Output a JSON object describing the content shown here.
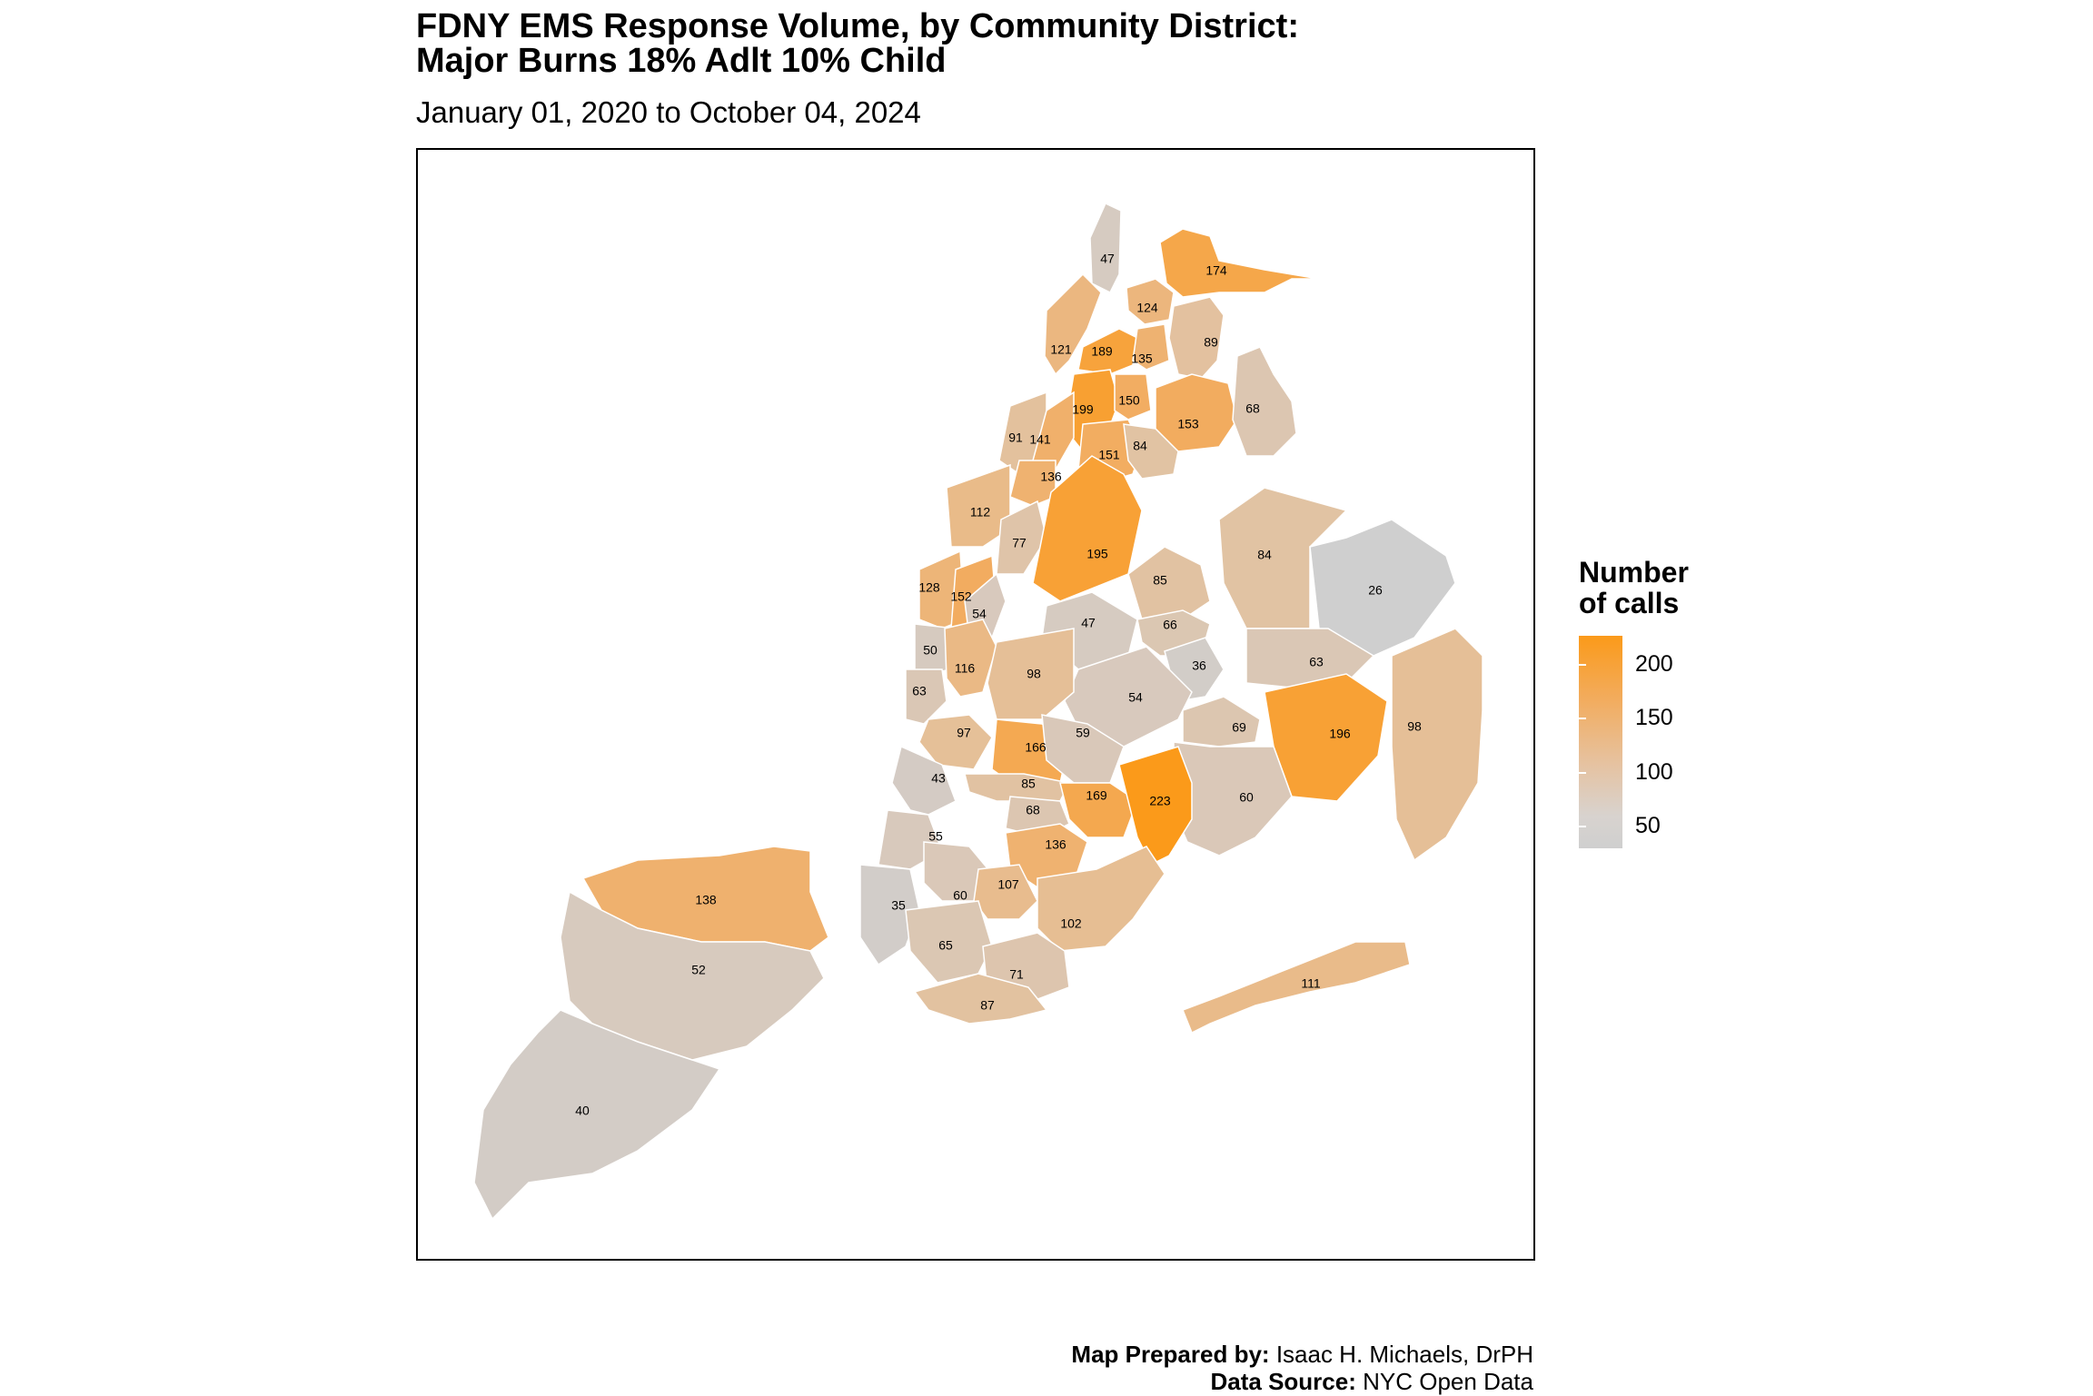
{
  "title_line1": "FDNY EMS Response Volume, by Community District:",
  "title_line2": "Major Burns 18% Adlt 10% Child",
  "subtitle": "January 01, 2020 to October 04, 2024",
  "legend": {
    "title_line1": "Number",
    "title_line2": "of calls",
    "ticks": [
      "200",
      "150",
      "100",
      "50"
    ],
    "color_low": "#cfcfcf",
    "color_high": "#fb9a1a"
  },
  "caption": {
    "prepared_label": "Map Prepared by:",
    "prepared_value": "Isaac H. Michaels, DrPH",
    "source_label": "Data Source:",
    "source_value": "NYC Open Data"
  },
  "districts": [
    {
      "borough": "Bronx",
      "value": 47
    },
    {
      "borough": "Bronx",
      "value": 174
    },
    {
      "borough": "Bronx",
      "value": 124
    },
    {
      "borough": "Bronx",
      "value": 121
    },
    {
      "borough": "Bronx",
      "value": 189
    },
    {
      "borough": "Bronx",
      "value": 135
    },
    {
      "borough": "Bronx",
      "value": 89
    },
    {
      "borough": "Bronx",
      "value": 199
    },
    {
      "borough": "Bronx",
      "value": 150
    },
    {
      "borough": "Bronx",
      "value": 153
    },
    {
      "borough": "Bronx",
      "value": 68
    },
    {
      "borough": "Bronx",
      "value": 151
    },
    {
      "borough": "Bronx",
      "value": 84
    },
    {
      "borough": "Manhattan",
      "value": 91
    },
    {
      "borough": "Manhattan",
      "value": 141
    },
    {
      "borough": "Manhattan",
      "value": 136
    },
    {
      "borough": "Manhattan",
      "value": 112
    },
    {
      "borough": "Manhattan",
      "value": 77
    },
    {
      "borough": "Manhattan",
      "value": 128
    },
    {
      "borough": "Manhattan",
      "value": 152
    },
    {
      "borough": "Manhattan",
      "value": 54
    },
    {
      "borough": "Manhattan",
      "value": 50
    },
    {
      "borough": "Manhattan",
      "value": 63
    },
    {
      "borough": "Queens",
      "value": 195
    },
    {
      "borough": "Queens",
      "value": 85
    },
    {
      "borough": "Queens",
      "value": 84
    },
    {
      "borough": "Queens",
      "value": 26
    },
    {
      "borough": "Queens",
      "value": 47
    },
    {
      "borough": "Queens",
      "value": 66
    },
    {
      "borough": "Queens",
      "value": 36
    },
    {
      "borough": "Queens",
      "value": 63
    },
    {
      "borough": "Queens",
      "value": 54
    },
    {
      "borough": "Queens",
      "value": 69
    },
    {
      "borough": "Queens",
      "value": 196
    },
    {
      "borough": "Queens",
      "value": 98
    },
    {
      "borough": "Queens",
      "value": 60
    },
    {
      "borough": "Queens",
      "value": 111
    },
    {
      "borough": "Brooklyn",
      "value": 116
    },
    {
      "borough": "Brooklyn",
      "value": 98
    },
    {
      "borough": "Brooklyn",
      "value": 97
    },
    {
      "borough": "Brooklyn",
      "value": 166
    },
    {
      "borough": "Brooklyn",
      "value": 59
    },
    {
      "borough": "Brooklyn",
      "value": 43
    },
    {
      "borough": "Brooklyn",
      "value": 85
    },
    {
      "borough": "Brooklyn",
      "value": 169
    },
    {
      "borough": "Brooklyn",
      "value": 223
    },
    {
      "borough": "Brooklyn",
      "value": 68
    },
    {
      "borough": "Brooklyn",
      "value": 55
    },
    {
      "borough": "Brooklyn",
      "value": 136
    },
    {
      "borough": "Brooklyn",
      "value": 60
    },
    {
      "borough": "Brooklyn",
      "value": 107
    },
    {
      "borough": "Brooklyn",
      "value": 35
    },
    {
      "borough": "Brooklyn",
      "value": 102
    },
    {
      "borough": "Brooklyn",
      "value": 65
    },
    {
      "borough": "Brooklyn",
      "value": 71
    },
    {
      "borough": "Brooklyn",
      "value": 87
    },
    {
      "borough": "Staten Island",
      "value": 138
    },
    {
      "borough": "Staten Island",
      "value": 52
    },
    {
      "borough": "Staten Island",
      "value": 40
    }
  ]
}
